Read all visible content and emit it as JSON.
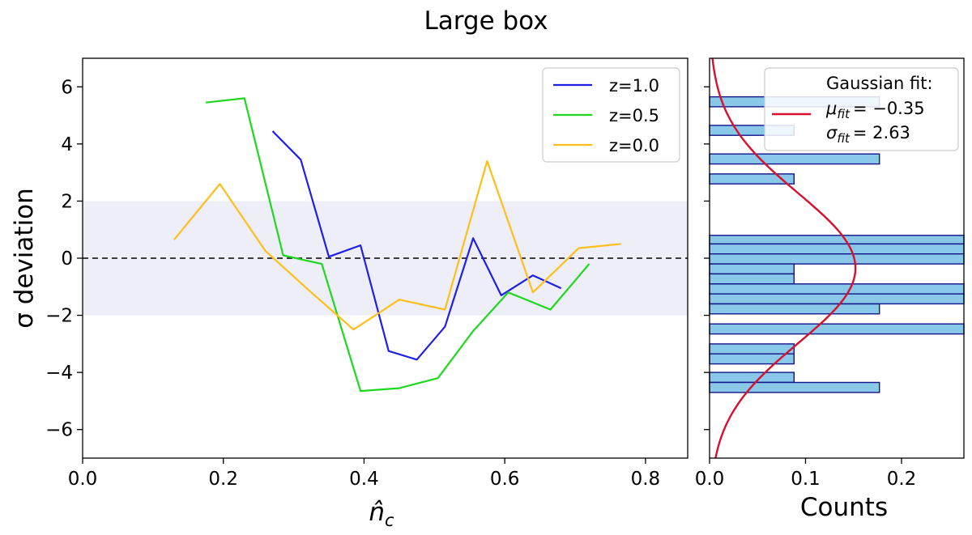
{
  "chart_data": {
    "title": "Large box",
    "main": {
      "type": "line",
      "xlabel": "n̂",
      "xlabel_sub": "c",
      "ylabel": "σ deviation",
      "xlim": [
        0.0,
        0.86
      ],
      "ylim": [
        -7,
        7
      ],
      "xticks": [
        0.0,
        0.2,
        0.4,
        0.6,
        0.8
      ],
      "xtick_labels": [
        "0.0",
        "0.2",
        "0.4",
        "0.6",
        "0.8"
      ],
      "yticks": [
        -6,
        -4,
        -2,
        0,
        2,
        4,
        6
      ],
      "ytick_labels": [
        "−6",
        "−4",
        "−2",
        "0",
        "2",
        "4",
        "6"
      ],
      "band": [
        -2,
        2
      ],
      "band_color": "#eeeef8",
      "zero_line": 0,
      "legend_position": "top-right",
      "series": [
        {
          "name": "z=1.0",
          "color": "#1f1fe6",
          "x": [
            0.27,
            0.31,
            0.35,
            0.395,
            0.435,
            0.475,
            0.515,
            0.555,
            0.595,
            0.64,
            0.68
          ],
          "y": [
            4.45,
            3.45,
            0.05,
            0.45,
            -3.25,
            -3.55,
            -2.4,
            0.7,
            -1.3,
            -0.6,
            -1.05
          ]
        },
        {
          "name": "z=0.5",
          "color": "#1ed81e",
          "x": [
            0.175,
            0.23,
            0.285,
            0.34,
            0.395,
            0.45,
            0.505,
            0.555,
            0.605,
            0.665,
            0.72
          ],
          "y": [
            5.45,
            5.6,
            0.1,
            -0.2,
            -4.65,
            -4.55,
            -4.2,
            -2.55,
            -1.2,
            -1.8,
            -0.2
          ]
        },
        {
          "name": "z=0.0",
          "color": "#ffbf1a",
          "x": [
            0.13,
            0.195,
            0.26,
            0.325,
            0.385,
            0.45,
            0.515,
            0.575,
            0.64,
            0.705,
            0.765
          ],
          "y": [
            0.65,
            2.6,
            0.25,
            -1.2,
            -2.5,
            -1.45,
            -1.8,
            3.4,
            -1.2,
            0.35,
            0.5
          ]
        }
      ]
    },
    "hist": {
      "type": "bar",
      "orientation": "horizontal",
      "xlabel": "Counts",
      "xlim": [
        0.0,
        0.265
      ],
      "ylim": [
        -7,
        7
      ],
      "xticks": [
        0.0,
        0.1,
        0.2
      ],
      "xtick_labels": [
        "0.0",
        "0.1",
        "0.2"
      ],
      "bar_color": "#89c8e8",
      "edge_color": "#14148c",
      "bins": [
        {
          "lo": 5.3,
          "hi": 5.65,
          "count": 0.177
        },
        {
          "lo": 4.3,
          "hi": 4.65,
          "count": 0.088
        },
        {
          "lo": 3.3,
          "hi": 3.65,
          "count": 0.177
        },
        {
          "lo": 2.6,
          "hi": 2.95,
          "count": 0.088
        },
        {
          "lo": 0.5,
          "hi": 0.8,
          "count": 0.265
        },
        {
          "lo": 0.15,
          "hi": 0.5,
          "count": 0.265
        },
        {
          "lo": -0.2,
          "hi": 0.15,
          "count": 0.265
        },
        {
          "lo": -0.55,
          "hi": -0.2,
          "count": 0.088
        },
        {
          "lo": -0.9,
          "hi": -0.55,
          "count": 0.088
        },
        {
          "lo": -1.25,
          "hi": -0.9,
          "count": 0.265
        },
        {
          "lo": -1.6,
          "hi": -1.25,
          "count": 0.265
        },
        {
          "lo": -1.95,
          "hi": -1.6,
          "count": 0.177
        },
        {
          "lo": -2.65,
          "hi": -2.3,
          "count": 0.265
        },
        {
          "lo": -3.35,
          "hi": -3.0,
          "count": 0.088
        },
        {
          "lo": -3.7,
          "hi": -3.35,
          "count": 0.088
        },
        {
          "lo": -4.35,
          "hi": -4.0,
          "count": 0.088
        },
        {
          "lo": -4.7,
          "hi": -4.35,
          "count": 0.177
        }
      ],
      "fit": {
        "mu": -0.35,
        "sigma": 2.63,
        "amplitude": 0.152,
        "color": "#d6102e"
      },
      "legend": {
        "title": "Gaussian fit:",
        "mu_label": "μ",
        "mu_sub": "fit",
        "mu_value": "= −0.35",
        "sigma_label": "σ",
        "sigma_sub": "fit",
        "sigma_value": "= 2.63"
      }
    }
  }
}
